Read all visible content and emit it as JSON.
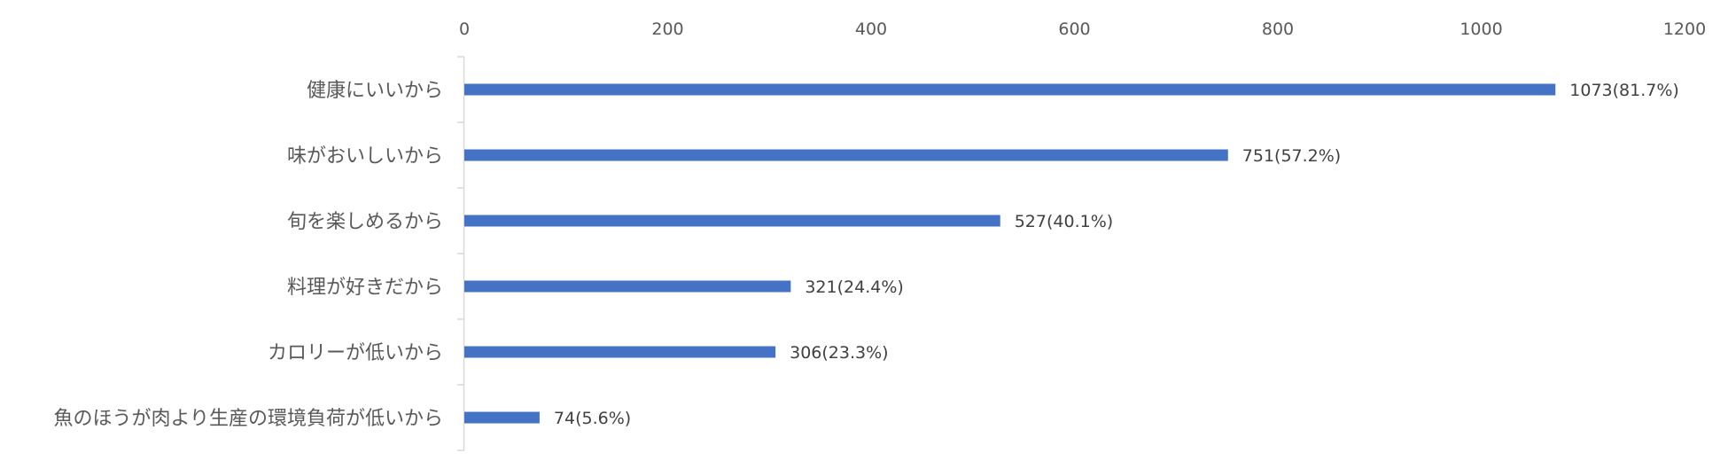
{
  "chart_data": {
    "type": "bar",
    "orientation": "horizontal",
    "title": "",
    "xlabel": "",
    "ylabel": "",
    "xlim": [
      0,
      1200
    ],
    "x_ticks": [
      "0",
      "200",
      "400",
      "600",
      "800",
      "1000",
      "1200"
    ],
    "x_axis_position": "top",
    "grid": false,
    "bar_color": "#4472C4",
    "categories": [
      "健康にいいから",
      "味がおいしいから",
      "旬を楽しめるから",
      "料理が好きだから",
      "カロリーが低いから",
      "魚のほうが肉より生産の環境負荷が低いから"
    ],
    "values": [
      1073,
      751,
      527,
      321,
      306,
      74
    ],
    "data_labels": [
      "1073(81.7%)",
      "751(57.2%)",
      "527(40.1%)",
      "321(24.4%)",
      "306(23.3%)",
      "74(5.6%)"
    ]
  }
}
